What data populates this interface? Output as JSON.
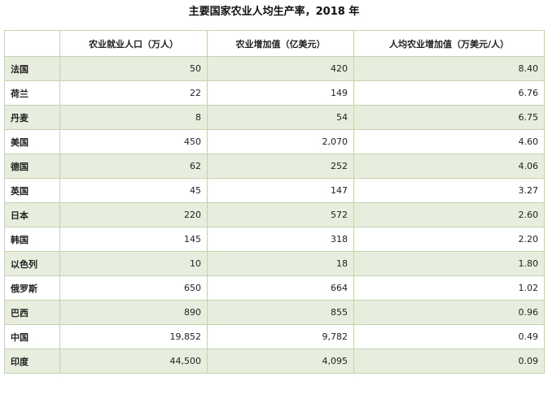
{
  "title": "主要国家农业人均生产率，2018 年",
  "columns": [
    "",
    "农业就业人口（万人）",
    "农业增加值（亿美元）",
    "人均农业增加值（万美元/人）"
  ],
  "rows": [
    [
      "法国",
      "50",
      "420",
      "8.40"
    ],
    [
      "荷兰",
      "22",
      "149",
      "6.76"
    ],
    [
      "丹麦",
      "8",
      "54",
      "6.75"
    ],
    [
      "美国",
      "450",
      "2,070",
      "4.60"
    ],
    [
      "德国",
      "62",
      "252",
      "4.06"
    ],
    [
      "英国",
      "45",
      "147",
      "3.27"
    ],
    [
      "日本",
      "220",
      "572",
      "2.60"
    ],
    [
      "韩国",
      "145",
      "318",
      "2.20"
    ],
    [
      "以色列",
      "10",
      "18",
      "1.80"
    ],
    [
      "俄罗斯",
      "650",
      "664",
      "1.02"
    ],
    [
      "巴西",
      "890",
      "855",
      "0.96"
    ],
    [
      "中国",
      "19,852",
      "9,782",
      "0.49"
    ],
    [
      "印度",
      "44,500",
      "4,095",
      "0.09"
    ]
  ],
  "colors": {
    "band": "#e8eedd",
    "border": "#c4d3ae"
  }
}
